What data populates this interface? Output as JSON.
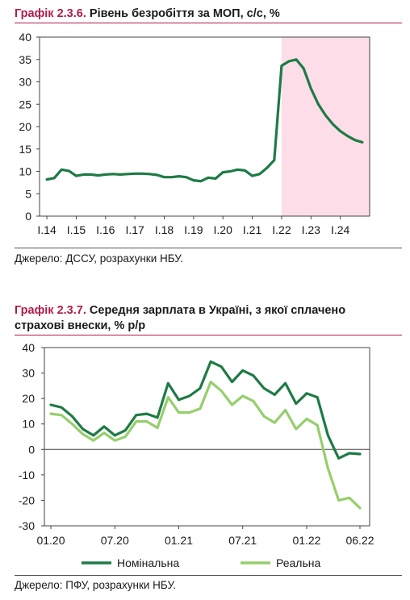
{
  "chart1": {
    "title_num": "Графік 2.3.6.",
    "title_text": "Рівень безробіття за МОП, с/с, %",
    "source": "Джерело: ДССУ, розрахунки НБУ.",
    "colors": {
      "line": "#1e7b45",
      "shade": "#fcdde8",
      "accent": "#b11c4a"
    }
  },
  "chart2": {
    "title_num": "Графік 2.3.7.",
    "title_text_line1": "Середня зарплата в Україні, з якої сплачено",
    "title_text_line2": "страхові внески, % р/р",
    "source": "Джерело: ПФУ, розрахунки НБУ.",
    "colors": {
      "nominal": "#1e7b45",
      "real": "#95cf6c",
      "accent": "#b11c4a"
    }
  },
  "chart_data": [
    {
      "type": "line",
      "title": "Рівень безробіття за МОП, с/с, %",
      "xlabel": "",
      "ylabel": "",
      "x_ticks": [
        "I.14",
        "I.15",
        "I.16",
        "I.17",
        "I.18",
        "I.19",
        "I.20",
        "I.21",
        "I.22",
        "I.23",
        "I.24"
      ],
      "ylim": [
        0,
        40
      ],
      "y_ticks": [
        0,
        5,
        10,
        15,
        20,
        25,
        30,
        35,
        40
      ],
      "grid": false,
      "shaded_region": {
        "from": "I.22",
        "to": "end"
      },
      "x": [
        2014.0,
        2014.25,
        2014.5,
        2014.75,
        2015.0,
        2015.25,
        2015.5,
        2015.75,
        2016.0,
        2016.25,
        2016.5,
        2016.75,
        2017.0,
        2017.25,
        2017.5,
        2017.75,
        2018.0,
        2018.25,
        2018.5,
        2018.75,
        2019.0,
        2019.25,
        2019.5,
        2019.75,
        2020.0,
        2020.25,
        2020.5,
        2020.75,
        2021.0,
        2021.25,
        2021.5,
        2021.75,
        2022.0,
        2022.25,
        2022.5,
        2022.75,
        2023.0,
        2023.25,
        2023.5,
        2023.75,
        2024.0,
        2024.25,
        2024.5,
        2024.75
      ],
      "series": [
        {
          "values": [
            8.2,
            8.5,
            10.4,
            10.1,
            9.0,
            9.3,
            9.3,
            9.1,
            9.3,
            9.4,
            9.3,
            9.4,
            9.5,
            9.5,
            9.4,
            9.2,
            8.7,
            8.7,
            8.9,
            8.7,
            8.0,
            7.8,
            8.6,
            8.4,
            9.8,
            10.0,
            10.4,
            10.2,
            9.0,
            9.4,
            10.8,
            12.5,
            33.6,
            34.6,
            35.0,
            33.0,
            28.5,
            25.0,
            22.5,
            20.5,
            19.0,
            17.9,
            17.0,
            16.5
          ]
        }
      ]
    },
    {
      "type": "line",
      "title": "Середня зарплата в Україні, з якої сплачено страхові внески, % р/р",
      "xlabel": "",
      "ylabel": "",
      "x_ticks": [
        "01.20",
        "07.20",
        "01.21",
        "07.21",
        "01.22",
        "06.22"
      ],
      "ylim": [
        -30,
        40
      ],
      "y_ticks": [
        -30,
        -20,
        -10,
        0,
        10,
        20,
        30,
        40
      ],
      "grid": false,
      "legend": "bottom",
      "x": [
        "01.20",
        "02.20",
        "03.20",
        "04.20",
        "05.20",
        "06.20",
        "07.20",
        "08.20",
        "09.20",
        "10.20",
        "11.20",
        "12.20",
        "01.21",
        "02.21",
        "03.21",
        "04.21",
        "05.21",
        "06.21",
        "07.21",
        "08.21",
        "09.21",
        "10.21",
        "11.21",
        "12.21",
        "01.22",
        "02.22",
        "03.22",
        "04.22",
        "05.22",
        "06.22"
      ],
      "series": [
        {
          "name": "Номінальна",
          "values": [
            17.5,
            16.5,
            13.0,
            8.0,
            5.5,
            9.0,
            5.5,
            7.5,
            13.5,
            14.0,
            12.5,
            26.0,
            19.5,
            21.0,
            24.0,
            34.5,
            32.5,
            26.5,
            31.0,
            29.0,
            24.0,
            21.5,
            26.0,
            18.0,
            22.0,
            20.5,
            5.5,
            -3.5,
            -1.5,
            -1.8
          ]
        },
        {
          "name": "Реальна",
          "values": [
            14.0,
            13.5,
            10.0,
            6.0,
            3.5,
            6.5,
            3.5,
            5.0,
            11.0,
            11.0,
            8.5,
            20.5,
            14.5,
            14.5,
            16.0,
            26.5,
            23.0,
            17.5,
            21.0,
            19.0,
            13.0,
            10.5,
            15.5,
            8.0,
            12.0,
            9.5,
            -7.5,
            -20.0,
            -19.0,
            -23.0
          ]
        }
      ]
    }
  ]
}
